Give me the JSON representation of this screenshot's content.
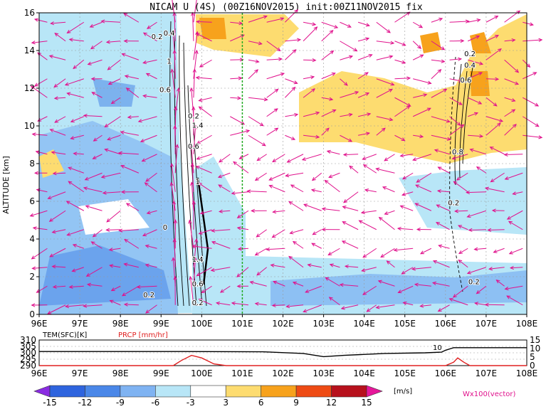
{
  "chart_data": [
    {
      "type": "heatmap",
      "title": "NICAM U (4S) (00Z16NOV2015) init:00Z11NOV2015 fix",
      "ylabel": "ALTITUDE [km]",
      "x_ticks": [
        "96E",
        "97E",
        "98E",
        "99E",
        "100E",
        "101E",
        "102E",
        "103E",
        "104E",
        "105E",
        "106E",
        "107E",
        "108E"
      ],
      "y_ticks": [
        "0",
        "2",
        "4",
        "6",
        "8",
        "10",
        "12",
        "14",
        "16"
      ],
      "xlim": [
        96,
        108
      ],
      "ylim": [
        0,
        16
      ],
      "grid": true,
      "marker_line_x": 101,
      "contour_labels": [
        {
          "text": "0.2",
          "lon": 98.9,
          "alt": 14.6
        },
        {
          "text": "0.4",
          "lon": 99.2,
          "alt": 14.8
        },
        {
          "text": "1",
          "lon": 99.2,
          "alt": 13.3
        },
        {
          "text": "0.6",
          "lon": 99.1,
          "alt": 11.8
        },
        {
          "text": "0.2",
          "lon": 99.8,
          "alt": 10.4
        },
        {
          "text": "1.4",
          "lon": 99.9,
          "alt": 9.9
        },
        {
          "text": "0.6",
          "lon": 99.8,
          "alt": 8.8
        },
        {
          "text": "1",
          "lon": 99.9,
          "alt": 6.9
        },
        {
          "text": "0",
          "lon": 99.1,
          "alt": 4.5
        },
        {
          "text": "1.4",
          "lon": 99.9,
          "alt": 2.8
        },
        {
          "text": "0.6",
          "lon": 99.9,
          "alt": 1.5
        },
        {
          "text": "0.2",
          "lon": 98.7,
          "alt": 0.9
        },
        {
          "text": "0.2",
          "lon": 99.9,
          "alt": 0.5
        },
        {
          "text": "0.2",
          "lon": 106.6,
          "alt": 13.7
        },
        {
          "text": "0.4",
          "lon": 106.6,
          "alt": 13.1
        },
        {
          "text": "0.6",
          "lon": 106.5,
          "alt": 12.3
        },
        {
          "text": "0.8",
          "lon": 106.3,
          "alt": 8.5
        },
        {
          "text": "0.2",
          "lon": 106.2,
          "alt": 5.8
        },
        {
          "text": "0.2",
          "lon": 106.7,
          "alt": 1.6
        }
      ],
      "colorbar": {
        "levels": [
          "-15",
          "-12",
          "-9",
          "-6",
          "-3",
          "3",
          "6",
          "9",
          "12",
          "15"
        ],
        "unit": "[m/s]",
        "colors": [
          "#8a2be2",
          "#2e64de",
          "#4a87e8",
          "#7fb3f2",
          "#b8e6f7",
          "#ffffff",
          "#fddc70",
          "#f7a21c",
          "#ee4b14",
          "#b7111c",
          "#e6179a"
        ]
      },
      "vector_note": "Wx100(vector)",
      "vector_color": "#e0118c"
    },
    {
      "type": "line",
      "label_left": "TEM(SFC)[K]",
      "label_right": "PRCP [mm/hr]",
      "y_left_ticks": [
        "310",
        "305",
        "300",
        "295",
        "290"
      ],
      "y_right_ticks": [
        "15",
        "10",
        "5",
        "0"
      ],
      "x_ticks": [
        "96E",
        "97E",
        "98E",
        "99E",
        "100E",
        "101E",
        "102E",
        "103E",
        "104E",
        "105E",
        "106E",
        "107E",
        "108E"
      ],
      "annotation": "10",
      "series": [
        {
          "name": "TEM(SFC)[K]",
          "color": "#000000",
          "x": [
            96,
            99.5,
            101.5,
            102.5,
            103.0,
            103.5,
            104.5,
            105.5,
            105.9,
            106.0,
            106.2,
            108
          ],
          "values": [
            301.0,
            301.0,
            300.8,
            299.5,
            297.0,
            298.0,
            299.5,
            300.0,
            300.5,
            302.0,
            304.0,
            304.0
          ]
        },
        {
          "name": "PRCP [mm/hr]",
          "color": "#e02020",
          "x": [
            96,
            99.3,
            99.5,
            99.75,
            100.0,
            100.3,
            100.6,
            106.0,
            106.2,
            106.3,
            106.45,
            106.6,
            108
          ],
          "values": [
            0,
            0,
            3,
            6,
            4.5,
            1,
            0,
            0,
            2,
            4.5,
            2,
            0,
            0
          ]
        }
      ]
    }
  ]
}
